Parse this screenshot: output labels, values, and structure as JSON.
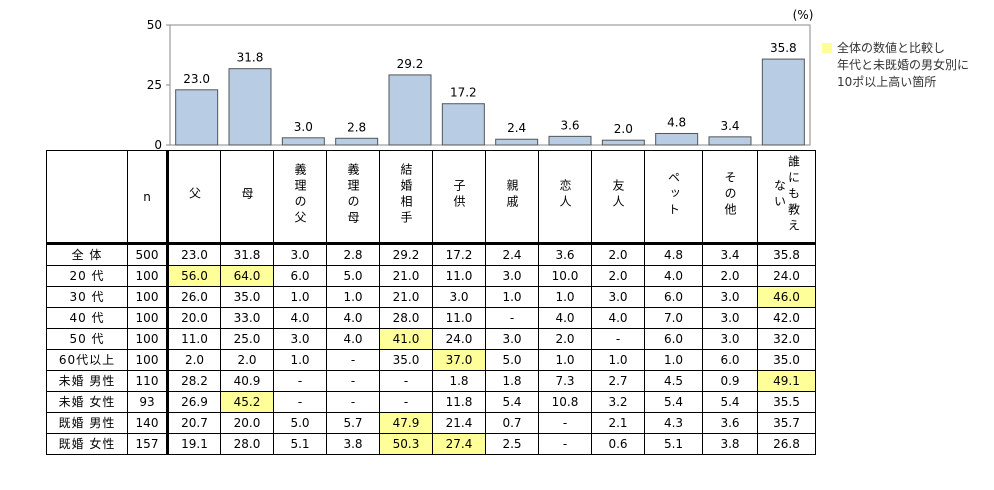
{
  "chart_data": {
    "type": "bar",
    "unit_label": "(%)",
    "ylim": [
      0,
      50
    ],
    "yticks": [
      0,
      25,
      50
    ],
    "categories": [
      "父",
      "母",
      "義理の父",
      "義理の母",
      "結婚相手",
      "子供",
      "親戚",
      "恋人",
      "友人",
      "ペット",
      "その他",
      "誰にも教えない"
    ],
    "values": [
      23.0,
      31.8,
      3.0,
      2.8,
      29.2,
      17.2,
      2.4,
      3.6,
      2.0,
      4.8,
      3.4,
      35.8
    ],
    "value_labels": [
      "23.0",
      "31.8",
      "3.0",
      "2.8",
      "29.2",
      "17.2",
      "2.4",
      "3.6",
      "2.0",
      "4.8",
      "3.4",
      "35.8"
    ],
    "bar_color": "#b8cce4",
    "bar_stroke": "#555555"
  },
  "legend": {
    "lines": [
      "全体の数値と比較し",
      "年代と未既婚の男女別に",
      "10ポ以上高い箇所"
    ],
    "highlight_color": "#ffff99"
  },
  "table": {
    "n_header": "n",
    "columns": [
      "父",
      "母",
      "義理の父",
      "義理の母",
      "結婚相手",
      "子供",
      "親戚",
      "恋人",
      "友人",
      "ペット",
      "その他",
      "誰にも教えない"
    ],
    "column_display": [
      "父",
      "母",
      "義理の父",
      "義理の母",
      "結婚相手",
      "子供",
      "親戚",
      "恋人",
      "友人",
      "ペット",
      "その他",
      "誰にも教えない"
    ],
    "rows": [
      {
        "label": "全 体",
        "n": "500",
        "values": [
          "23.0",
          "31.8",
          "3.0",
          "2.8",
          "29.2",
          "17.2",
          "2.4",
          "3.6",
          "2.0",
          "4.8",
          "3.4",
          "35.8"
        ],
        "highlight": []
      },
      {
        "label": "20 代",
        "n": "100",
        "values": [
          "56.0",
          "64.0",
          "6.0",
          "5.0",
          "21.0",
          "11.0",
          "3.0",
          "10.0",
          "2.0",
          "4.0",
          "2.0",
          "24.0"
        ],
        "highlight": [
          0,
          1
        ]
      },
      {
        "label": "30 代",
        "n": "100",
        "values": [
          "26.0",
          "35.0",
          "1.0",
          "1.0",
          "21.0",
          "3.0",
          "1.0",
          "1.0",
          "3.0",
          "6.0",
          "3.0",
          "46.0"
        ],
        "highlight": [
          11
        ]
      },
      {
        "label": "40 代",
        "n": "100",
        "values": [
          "20.0",
          "33.0",
          "4.0",
          "4.0",
          "28.0",
          "11.0",
          "-",
          "4.0",
          "4.0",
          "7.0",
          "3.0",
          "42.0"
        ],
        "highlight": []
      },
      {
        "label": "50 代",
        "n": "100",
        "values": [
          "11.0",
          "25.0",
          "3.0",
          "4.0",
          "41.0",
          "24.0",
          "3.0",
          "2.0",
          "-",
          "6.0",
          "3.0",
          "32.0"
        ],
        "highlight": [
          4
        ]
      },
      {
        "label": "60代以上",
        "n": "100",
        "values": [
          "2.0",
          "2.0",
          "1.0",
          "-",
          "35.0",
          "37.0",
          "5.0",
          "1.0",
          "1.0",
          "1.0",
          "6.0",
          "35.0"
        ],
        "highlight": [
          5
        ]
      },
      {
        "label": "未婚 男性",
        "n": "110",
        "values": [
          "28.2",
          "40.9",
          "-",
          "-",
          "-",
          "1.8",
          "1.8",
          "7.3",
          "2.7",
          "4.5",
          "0.9",
          "49.1"
        ],
        "highlight": [
          11
        ]
      },
      {
        "label": "未婚 女性",
        "n": "93",
        "values": [
          "26.9",
          "45.2",
          "-",
          "-",
          "-",
          "11.8",
          "5.4",
          "10.8",
          "3.2",
          "5.4",
          "5.4",
          "35.5"
        ],
        "highlight": [
          1
        ]
      },
      {
        "label": "既婚 男性",
        "n": "140",
        "values": [
          "20.7",
          "20.0",
          "5.0",
          "5.7",
          "47.9",
          "21.4",
          "0.7",
          "-",
          "2.1",
          "4.3",
          "3.6",
          "35.7"
        ],
        "highlight": [
          4
        ]
      },
      {
        "label": "既婚 女性",
        "n": "157",
        "values": [
          "19.1",
          "28.0",
          "5.1",
          "3.8",
          "50.3",
          "27.4",
          "2.5",
          "-",
          "0.6",
          "5.1",
          "3.8",
          "26.8"
        ],
        "highlight": [
          4,
          5
        ]
      }
    ]
  }
}
